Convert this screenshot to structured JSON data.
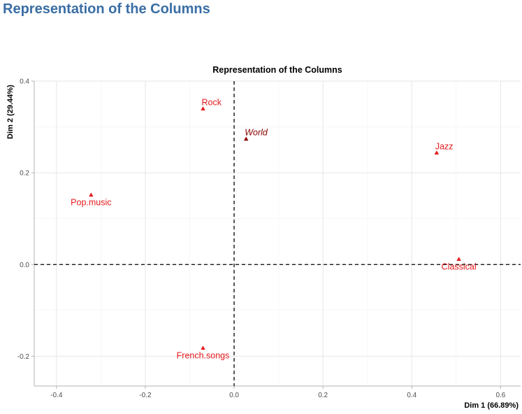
{
  "page": {
    "title": "Representation of the Columns"
  },
  "chart_data": {
    "type": "scatter",
    "title": "Representation of the Columns",
    "xlabel": "Dim 1 (66.89%)",
    "ylabel": "Dim 2 (29.44%)",
    "xlim": [
      -0.45,
      0.645
    ],
    "ylim": [
      -0.265,
      0.4
    ],
    "xticks": [
      -0.4,
      -0.2,
      0.0,
      0.2,
      0.4,
      0.6
    ],
    "xtick_labels": [
      "-0.4",
      "-0.2",
      "0.0",
      "0.2",
      "0.4",
      "0.6"
    ],
    "yticks": [
      -0.2,
      0.0,
      0.2,
      0.4
    ],
    "ytick_labels": [
      "-0.2",
      "0.0",
      "0.2",
      "0.4"
    ],
    "grid": true,
    "reference_lines": {
      "x": 0,
      "y": 0,
      "style": "dashed"
    },
    "marker": "triangle",
    "points": [
      {
        "label": "Rock",
        "x": -0.07,
        "y": 0.34,
        "color": "#e41a1c",
        "italic": false,
        "label_pos": "right-above"
      },
      {
        "label": "World",
        "x": 0.027,
        "y": 0.274,
        "color": "#8b0000",
        "italic": true,
        "label_pos": "right-above"
      },
      {
        "label": "Jazz",
        "x": 0.456,
        "y": 0.244,
        "color": "#e41a1c",
        "italic": false,
        "label_pos": "right-above"
      },
      {
        "label": "Pop.music",
        "x": -0.322,
        "y": 0.152,
        "color": "#e41a1c",
        "italic": false,
        "label_pos": "below"
      },
      {
        "label": "Classical",
        "x": 0.506,
        "y": 0.012,
        "color": "#e41a1c",
        "italic": false,
        "label_pos": "below"
      },
      {
        "label": "French.songs",
        "x": -0.07,
        "y": -0.182,
        "color": "#e41a1c",
        "italic": false,
        "label_pos": "below"
      }
    ]
  }
}
